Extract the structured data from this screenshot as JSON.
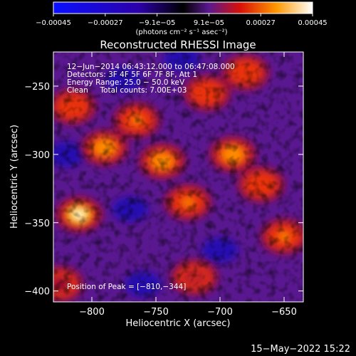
{
  "colorbar": {
    "tick_labels": [
      "−0.00045",
      "−0.00027",
      "−9.1e−05",
      "9.1e−05",
      "0.00027",
      "0.00045"
    ],
    "unit_label": "(photons cm⁻² s⁻¹ asec⁻²)",
    "range": [
      -0.00045,
      0.00045
    ],
    "colors": [
      "#0a10ff",
      "#2c00a8",
      "#000000",
      "#5a1890",
      "#d81008",
      "#ff9800",
      "#ffffff"
    ]
  },
  "info": {
    "line1": "12−Jun−2014 06:43:12.000 to 06:47:08.000",
    "line2": "Detectors: 3F 4F 5F 6F 7F 8F, Att 1",
    "line3": "Energy Range: 25.0 − 50.0 keV",
    "line4": "Clean     Total counts: 7.00E+03",
    "peak": "Position of Peak = [−810,−344]"
  },
  "footer_date": "15−May−2022 15:22",
  "chart_data": {
    "type": "heatmap",
    "title": "Reconstructed RHESSI Image",
    "xlabel": "Heliocentric X (arcsec)",
    "ylabel": "Heliocentric Y (arcsec)",
    "xlim": [
      -830,
      -635
    ],
    "ylim": [
      -408,
      -225
    ],
    "x_ticks": [
      -800,
      -750,
      -700,
      -650
    ],
    "x_tick_labels": [
      "−800",
      "−750",
      "−700",
      "−650"
    ],
    "y_ticks": [
      -250,
      -300,
      -350,
      -400
    ],
    "y_tick_labels": [
      "−250",
      "−300",
      "−350",
      "−400"
    ],
    "peak_position": [
      -810,
      -344
    ],
    "bright_regions": [
      {
        "x": -810,
        "y": -344,
        "level": 0.00045
      },
      {
        "x": -790,
        "y": -295,
        "level": 0.0003
      },
      {
        "x": -765,
        "y": -275,
        "level": 0.00028
      },
      {
        "x": -745,
        "y": -305,
        "level": 0.0003
      },
      {
        "x": -725,
        "y": -335,
        "level": 0.00026
      },
      {
        "x": -710,
        "y": -255,
        "level": 0.00022
      },
      {
        "x": -690,
        "y": -300,
        "level": 0.0003
      },
      {
        "x": -680,
        "y": -240,
        "level": 0.00025
      },
      {
        "x": -668,
        "y": -322,
        "level": 0.00024
      },
      {
        "x": -650,
        "y": -360,
        "level": 0.00026
      },
      {
        "x": -720,
        "y": -390,
        "level": 0.00018
      },
      {
        "x": -815,
        "y": -265,
        "level": 0.00022
      },
      {
        "x": -825,
        "y": -395,
        "level": 0.00015
      }
    ],
    "dark_regions": [
      {
        "x": -770,
        "y": -340,
        "level": -0.0002
      },
      {
        "x": -760,
        "y": -395,
        "level": -0.00018
      },
      {
        "x": -730,
        "y": -230,
        "level": -0.00015
      },
      {
        "x": -700,
        "y": -370,
        "level": -0.00012
      },
      {
        "x": -820,
        "y": -300,
        "level": -0.00015
      },
      {
        "x": -775,
        "y": -245,
        "level": -0.00012
      }
    ]
  }
}
